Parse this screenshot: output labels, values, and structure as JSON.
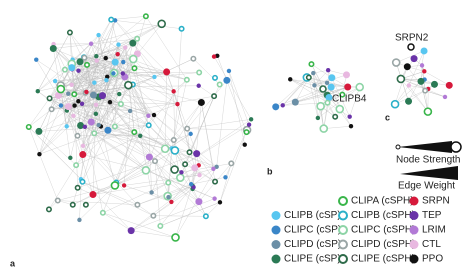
{
  "panels": {
    "a": "a",
    "b": "b",
    "c": "c"
  },
  "node_labels": {
    "clipb4": "CLIPB4",
    "srpn2": "SRPN2"
  },
  "scale": {
    "node_strength": "Node Strength",
    "edge_weight": "Edge Weight"
  },
  "legend": [
    {
      "label": "CLIPA (cSPH)",
      "color": "#39b54a",
      "style": "ring",
      "column": 1,
      "row": 0
    },
    {
      "label": "SRPN",
      "color": "#d6193b",
      "style": "filled",
      "column": 2,
      "row": 0
    },
    {
      "label": "CLIPB (cSP)",
      "color": "#58c6f0",
      "style": "filled",
      "column": 0,
      "row": 1
    },
    {
      "label": "CLIPB (cSPH)",
      "color": "#2ab0c8",
      "style": "ring",
      "column": 1,
      "row": 1
    },
    {
      "label": "TEP",
      "color": "#6a33a8",
      "style": "filled",
      "column": 2,
      "row": 1
    },
    {
      "label": "CLIPC (cSP)",
      "color": "#3a86c8",
      "style": "filled",
      "column": 0,
      "row": 2
    },
    {
      "label": "CLIPC (cSPH)",
      "color": "#8dd4a6",
      "style": "ring",
      "column": 1,
      "row": 2
    },
    {
      "label": "LRIM",
      "color": "#b27ad6",
      "style": "filled",
      "column": 2,
      "row": 2
    },
    {
      "label": "CLIPD (cSP)",
      "color": "#6b8fa6",
      "style": "filled",
      "column": 0,
      "row": 3
    },
    {
      "label": "CLIPD (cSPH)",
      "color": "#9aa6a6",
      "style": "ring",
      "column": 1,
      "row": 3
    },
    {
      "label": "CTL",
      "color": "#e8b8e0",
      "style": "filled",
      "column": 2,
      "row": 3
    },
    {
      "label": "CLIPE (cSP)",
      "color": "#2b7a55",
      "style": "filled",
      "column": 0,
      "row": 4
    },
    {
      "label": "CLIPE (cSPH)",
      "color": "#2e6b4a",
      "style": "ring",
      "column": 1,
      "row": 4
    },
    {
      "label": "PPO",
      "color": "#111111",
      "style": "filled",
      "column": 2,
      "row": 4
    }
  ]
}
